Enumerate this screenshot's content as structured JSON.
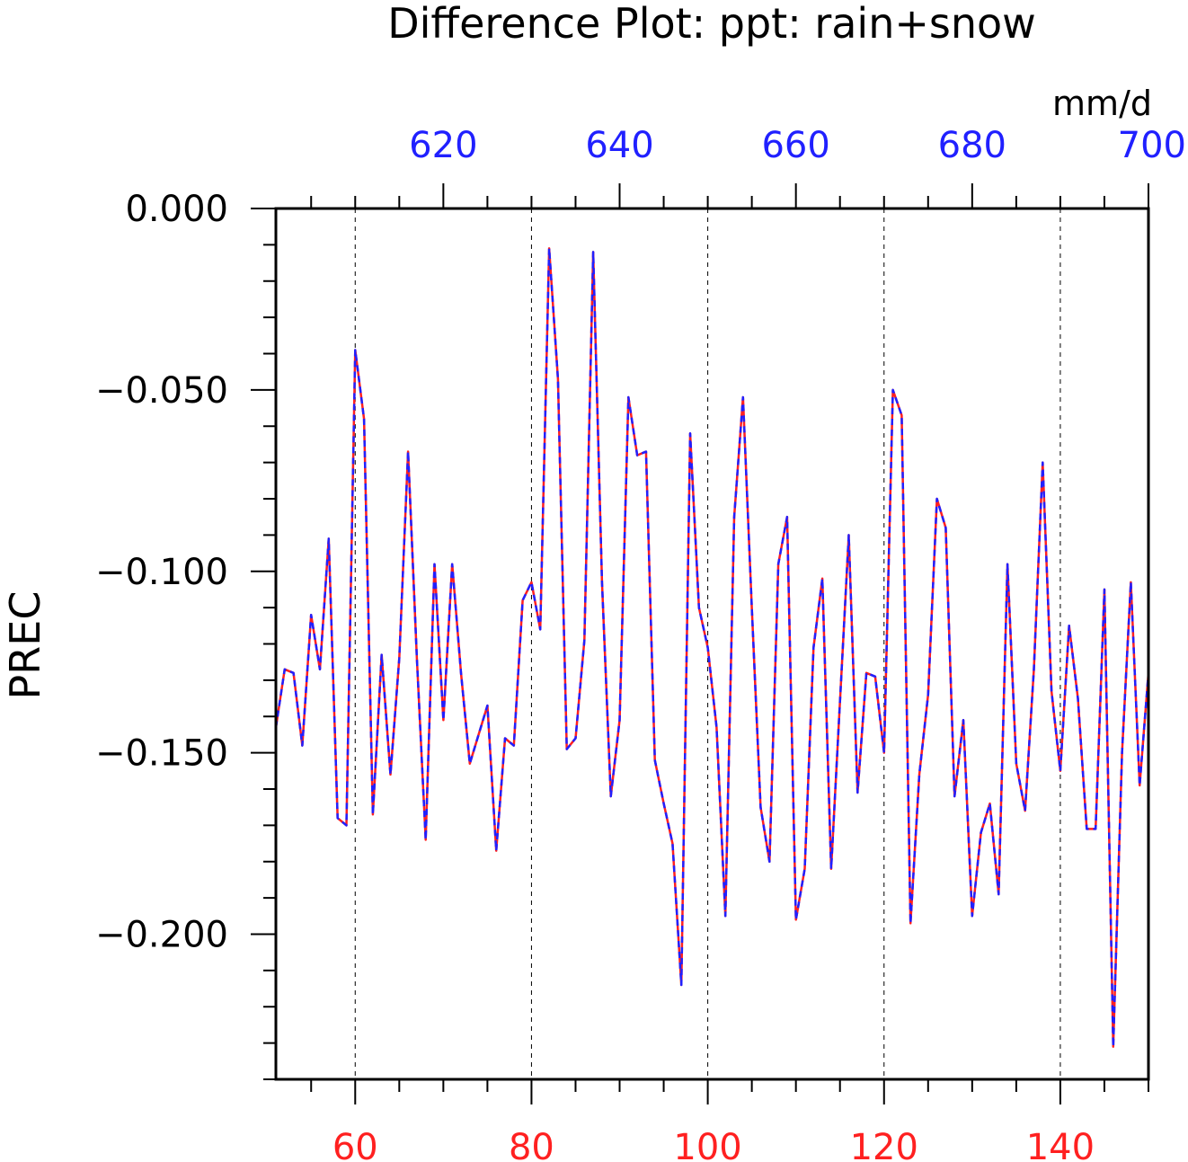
{
  "chart_data": {
    "type": "line",
    "title": "Difference Plot: ppt: rain+snow",
    "units": "mm/d",
    "ylabel": "PREC",
    "xlim": [
      51,
      150
    ],
    "top_xlim": [
      601,
      700
    ],
    "ylim": [
      -0.24,
      0.0
    ],
    "x_ticks": [
      60,
      80,
      100,
      120,
      140
    ],
    "x_tick_labels": [
      "60",
      "80",
      "100",
      "120",
      "140"
    ],
    "top_ticks": [
      620,
      640,
      660,
      680,
      700
    ],
    "top_tick_labels": [
      "620",
      "640",
      "660",
      "680",
      "700"
    ],
    "y_ticks": [
      0.0,
      -0.05,
      -0.1,
      -0.15,
      -0.2
    ],
    "y_tick_labels": [
      "0.000",
      "−0.050",
      "−0.100",
      "−0.150",
      "−0.200"
    ],
    "vertical_gridlines": [
      60,
      80,
      100,
      120,
      140
    ],
    "x": [
      51,
      52,
      53,
      54,
      55,
      56,
      57,
      58,
      59,
      60,
      61,
      62,
      63,
      64,
      65,
      66,
      67,
      68,
      69,
      70,
      71,
      72,
      73,
      74,
      75,
      76,
      77,
      78,
      79,
      80,
      81,
      82,
      83,
      84,
      85,
      86,
      87,
      88,
      89,
      90,
      91,
      92,
      93,
      94,
      95,
      96,
      97,
      98,
      99,
      100,
      101,
      102,
      103,
      104,
      105,
      106,
      107,
      108,
      109,
      110,
      111,
      112,
      113,
      114,
      115,
      116,
      117,
      118,
      119,
      120,
      121,
      122,
      123,
      124,
      125,
      126,
      127,
      128,
      129,
      130,
      131,
      132,
      133,
      134,
      135,
      136,
      137,
      138,
      139,
      140,
      141,
      142,
      143,
      144,
      145,
      146,
      147,
      148,
      149,
      150
    ],
    "series": [
      {
        "color": "#ff2020",
        "values": [
          -0.143,
          -0.127,
          -0.128,
          -0.148,
          -0.112,
          -0.127,
          -0.091,
          -0.168,
          -0.17,
          -0.039,
          -0.058,
          -0.167,
          -0.123,
          -0.156,
          -0.124,
          -0.067,
          -0.124,
          -0.174,
          -0.098,
          -0.141,
          -0.098,
          -0.128,
          -0.153,
          -0.145,
          -0.137,
          -0.177,
          -0.146,
          -0.148,
          -0.108,
          -0.103,
          -0.116,
          -0.011,
          -0.047,
          -0.149,
          -0.146,
          -0.119,
          -0.012,
          -0.103,
          -0.162,
          -0.141,
          -0.052,
          -0.068,
          -0.067,
          -0.152,
          -0.164,
          -0.175,
          -0.214,
          -0.062,
          -0.11,
          -0.121,
          -0.143,
          -0.195,
          -0.085,
          -0.052,
          -0.11,
          -0.165,
          -0.18,
          -0.098,
          -0.085,
          -0.196,
          -0.182,
          -0.121,
          -0.102,
          -0.182,
          -0.136,
          -0.09,
          -0.161,
          -0.128,
          -0.129,
          -0.15,
          -0.05,
          -0.057,
          -0.197,
          -0.156,
          -0.134,
          -0.08,
          -0.088,
          -0.162,
          -0.141,
          -0.195,
          -0.172,
          -0.164,
          -0.189,
          -0.098,
          -0.153,
          -0.166,
          -0.127,
          -0.07,
          -0.133,
          -0.155,
          -0.115,
          -0.135,
          -0.171,
          -0.171,
          -0.105,
          -0.231,
          -0.15,
          -0.103,
          -0.159,
          -0.128
        ]
      },
      {
        "color": "#2020ff",
        "dashed": true,
        "values": [
          -0.143,
          -0.127,
          -0.128,
          -0.148,
          -0.112,
          -0.127,
          -0.091,
          -0.168,
          -0.17,
          -0.039,
          -0.058,
          -0.167,
          -0.123,
          -0.156,
          -0.124,
          -0.067,
          -0.124,
          -0.174,
          -0.098,
          -0.141,
          -0.098,
          -0.128,
          -0.153,
          -0.145,
          -0.137,
          -0.177,
          -0.146,
          -0.148,
          -0.108,
          -0.103,
          -0.116,
          -0.011,
          -0.047,
          -0.149,
          -0.146,
          -0.119,
          -0.012,
          -0.103,
          -0.162,
          -0.141,
          -0.052,
          -0.068,
          -0.067,
          -0.152,
          -0.164,
          -0.175,
          -0.214,
          -0.062,
          -0.11,
          -0.121,
          -0.143,
          -0.195,
          -0.085,
          -0.052,
          -0.11,
          -0.165,
          -0.18,
          -0.098,
          -0.085,
          -0.196,
          -0.182,
          -0.121,
          -0.102,
          -0.182,
          -0.136,
          -0.09,
          -0.161,
          -0.128,
          -0.129,
          -0.15,
          -0.05,
          -0.057,
          -0.197,
          -0.156,
          -0.134,
          -0.08,
          -0.088,
          -0.162,
          -0.141,
          -0.195,
          -0.172,
          -0.164,
          -0.189,
          -0.098,
          -0.153,
          -0.166,
          -0.127,
          -0.07,
          -0.133,
          -0.155,
          -0.115,
          -0.135,
          -0.171,
          -0.171,
          -0.105,
          -0.231,
          -0.15,
          -0.103,
          -0.159,
          -0.128
        ]
      }
    ],
    "colors": {
      "bottom_axis": "#ff2020",
      "top_axis": "#2020ff",
      "frame": "#000000"
    },
    "grid": "vertical dashed",
    "legend": "none"
  }
}
